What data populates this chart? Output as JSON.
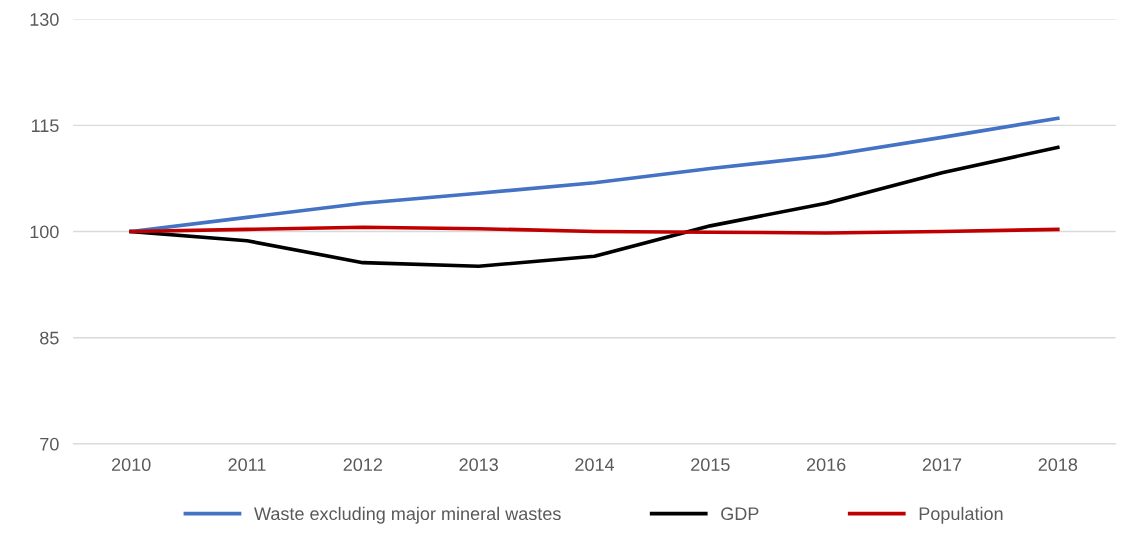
{
  "chart_data": {
    "type": "line",
    "categories": [
      "2010",
      "2011",
      "2012",
      "2013",
      "2014",
      "2015",
      "2016",
      "2017",
      "2018"
    ],
    "series": [
      {
        "name": "Waste excluding major mineral wastes",
        "color": "#4472c4",
        "values": [
          100,
          102,
          104,
          105.4,
          106.9,
          108.9,
          110.7,
          113.3,
          116
        ]
      },
      {
        "name": "GDP",
        "color": "#000000",
        "values": [
          100,
          98.7,
          95.6,
          95.1,
          96.5,
          100.8,
          104,
          108.3,
          111.9
        ]
      },
      {
        "name": "Population",
        "color": "#c00000",
        "values": [
          100,
          100.3,
          100.6,
          100.4,
          100,
          99.9,
          99.8,
          100,
          100.3
        ]
      }
    ],
    "ylim": [
      70,
      130
    ],
    "yticks": [
      70,
      85,
      100,
      115,
      130
    ],
    "grid": "y",
    "legend": "bottom",
    "marker": "none",
    "line_style": "solid"
  }
}
